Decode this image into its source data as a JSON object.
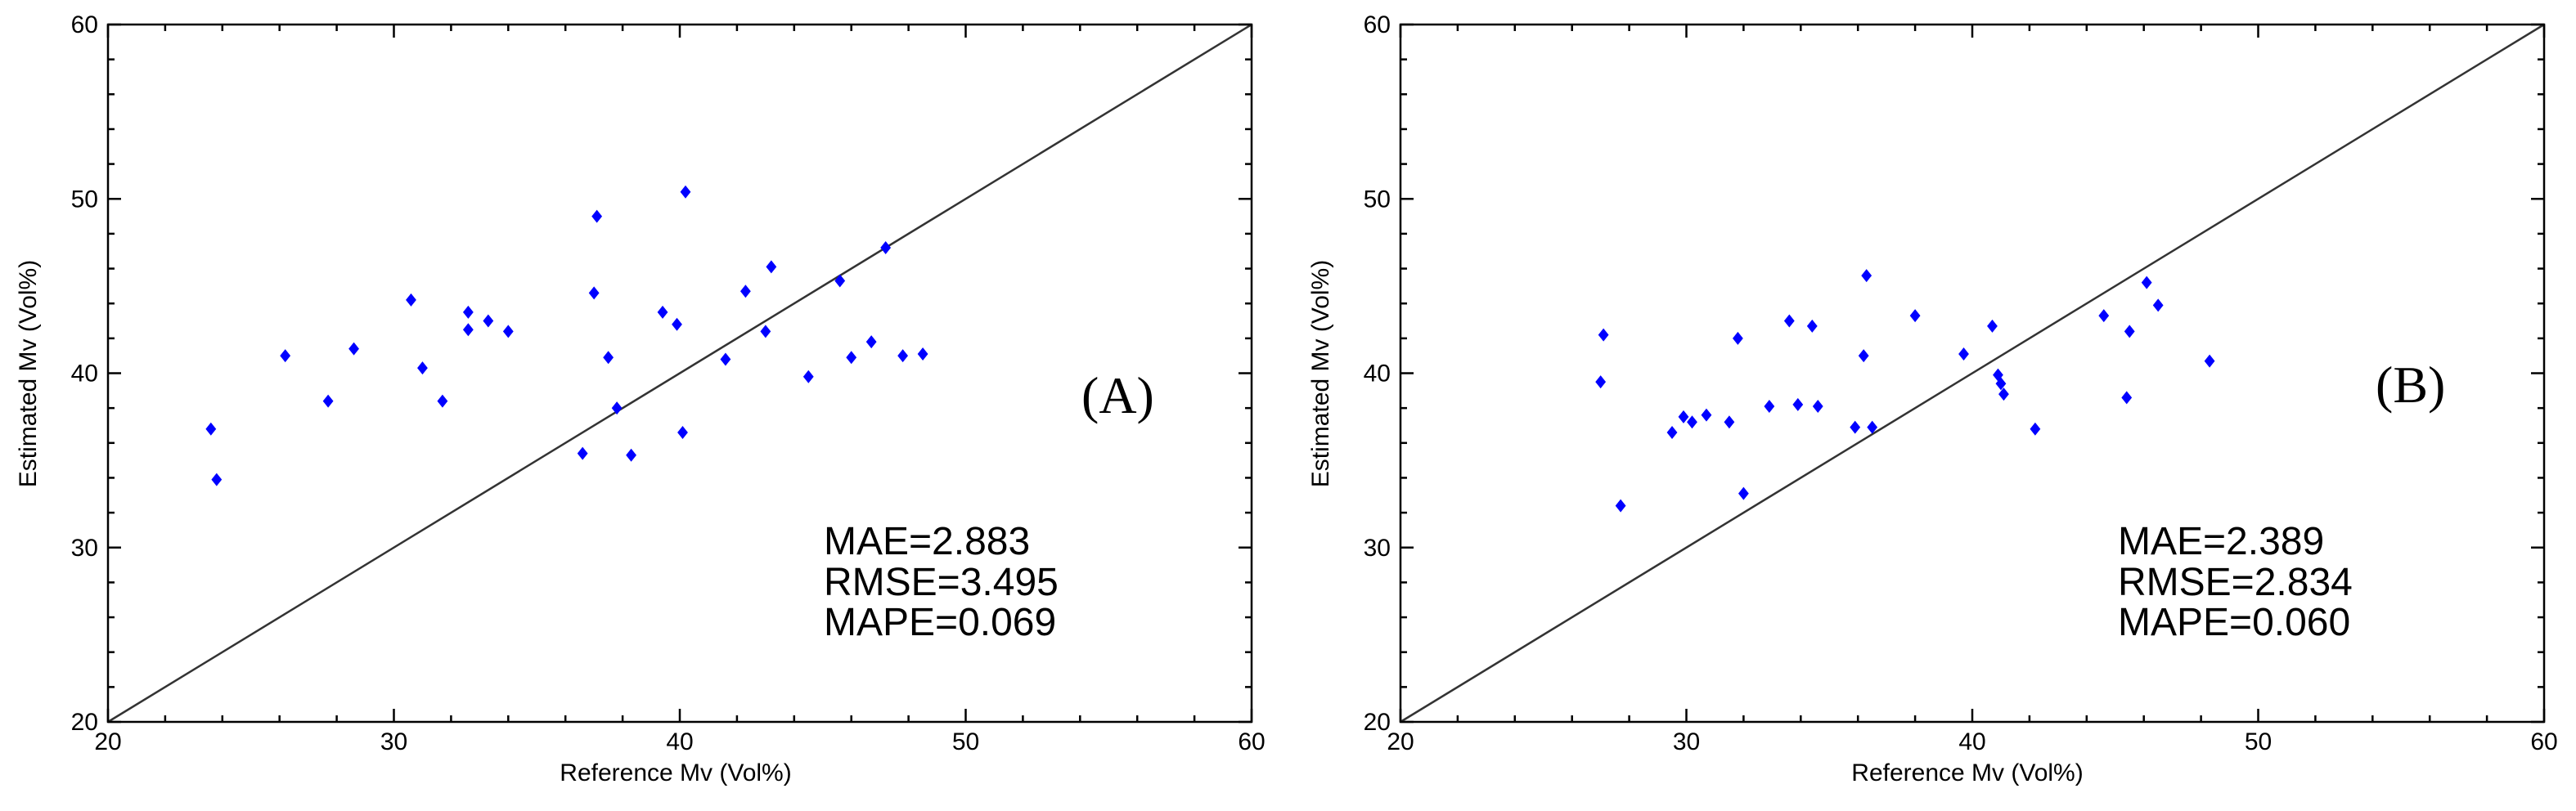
{
  "chart_data": [
    {
      "type": "scatter",
      "panel_label": "(A)",
      "xlabel": "Reference Mv (Vol%)",
      "ylabel": "Estimated Mv (Vol%)",
      "xlim": [
        20,
        60
      ],
      "ylim": [
        20,
        60
      ],
      "xticks": [
        20,
        30,
        40,
        50,
        60
      ],
      "yticks": [
        20,
        30,
        40,
        50,
        60
      ],
      "reference_line": "1:1",
      "marker_color": "#0000ff",
      "stats": [
        "MAE=2.883",
        "RMSE=3.495",
        "MAPE=0.069"
      ],
      "points": [
        [
          23.6,
          36.8
        ],
        [
          23.8,
          33.9
        ],
        [
          26.2,
          41.0
        ],
        [
          27.7,
          38.4
        ],
        [
          28.6,
          41.4
        ],
        [
          30.6,
          44.2
        ],
        [
          31.0,
          40.3
        ],
        [
          31.7,
          38.4
        ],
        [
          32.6,
          43.5
        ],
        [
          32.6,
          42.5
        ],
        [
          33.3,
          43.0
        ],
        [
          34.0,
          42.4
        ],
        [
          36.6,
          35.4
        ],
        [
          37.0,
          44.6
        ],
        [
          37.1,
          49.0
        ],
        [
          37.5,
          40.9
        ],
        [
          37.8,
          38.0
        ],
        [
          38.3,
          35.3
        ],
        [
          39.4,
          43.5
        ],
        [
          39.9,
          42.8
        ],
        [
          40.1,
          36.6
        ],
        [
          40.2,
          50.4
        ],
        [
          41.6,
          40.8
        ],
        [
          42.3,
          44.7
        ],
        [
          43.0,
          42.4
        ],
        [
          43.2,
          46.1
        ],
        [
          44.5,
          39.8
        ],
        [
          45.6,
          45.3
        ],
        [
          46.0,
          40.9
        ],
        [
          46.7,
          41.8
        ],
        [
          47.2,
          47.2
        ],
        [
          47.8,
          41.0
        ],
        [
          48.5,
          41.1
        ]
      ]
    },
    {
      "type": "scatter",
      "panel_label": "(B)",
      "xlabel": "Reference Mv (Vol%)",
      "ylabel": "Estimated Mv (Vol%)",
      "xlim": [
        20,
        60
      ],
      "ylim": [
        20,
        60
      ],
      "xticks": [
        20,
        30,
        40,
        50,
        60
      ],
      "yticks": [
        20,
        30,
        40,
        50,
        60
      ],
      "reference_line": "1:1",
      "marker_color": "#0000ff",
      "stats": [
        "MAE=2.389",
        "RMSE=2.834",
        "MAPE=0.060"
      ],
      "points": [
        [
          27.0,
          39.5
        ],
        [
          27.1,
          42.2
        ],
        [
          27.7,
          32.4
        ],
        [
          29.5,
          36.6
        ],
        [
          29.9,
          37.5
        ],
        [
          30.2,
          37.2
        ],
        [
          30.7,
          37.6
        ],
        [
          31.5,
          37.2
        ],
        [
          31.8,
          42.0
        ],
        [
          32.0,
          33.1
        ],
        [
          32.9,
          38.1
        ],
        [
          33.6,
          43.0
        ],
        [
          33.9,
          38.2
        ],
        [
          34.4,
          42.7
        ],
        [
          34.6,
          38.1
        ],
        [
          35.9,
          36.9
        ],
        [
          36.2,
          41.0
        ],
        [
          36.3,
          45.6
        ],
        [
          36.5,
          36.9
        ],
        [
          38.0,
          43.3
        ],
        [
          39.7,
          41.1
        ],
        [
          40.7,
          42.7
        ],
        [
          40.9,
          39.9
        ],
        [
          41.1,
          38.8
        ],
        [
          41.0,
          39.4
        ],
        [
          42.2,
          36.8
        ],
        [
          44.6,
          43.3
        ],
        [
          45.4,
          38.6
        ],
        [
          45.5,
          42.4
        ],
        [
          46.1,
          45.2
        ],
        [
          46.5,
          43.9
        ],
        [
          48.3,
          40.7
        ]
      ]
    }
  ]
}
